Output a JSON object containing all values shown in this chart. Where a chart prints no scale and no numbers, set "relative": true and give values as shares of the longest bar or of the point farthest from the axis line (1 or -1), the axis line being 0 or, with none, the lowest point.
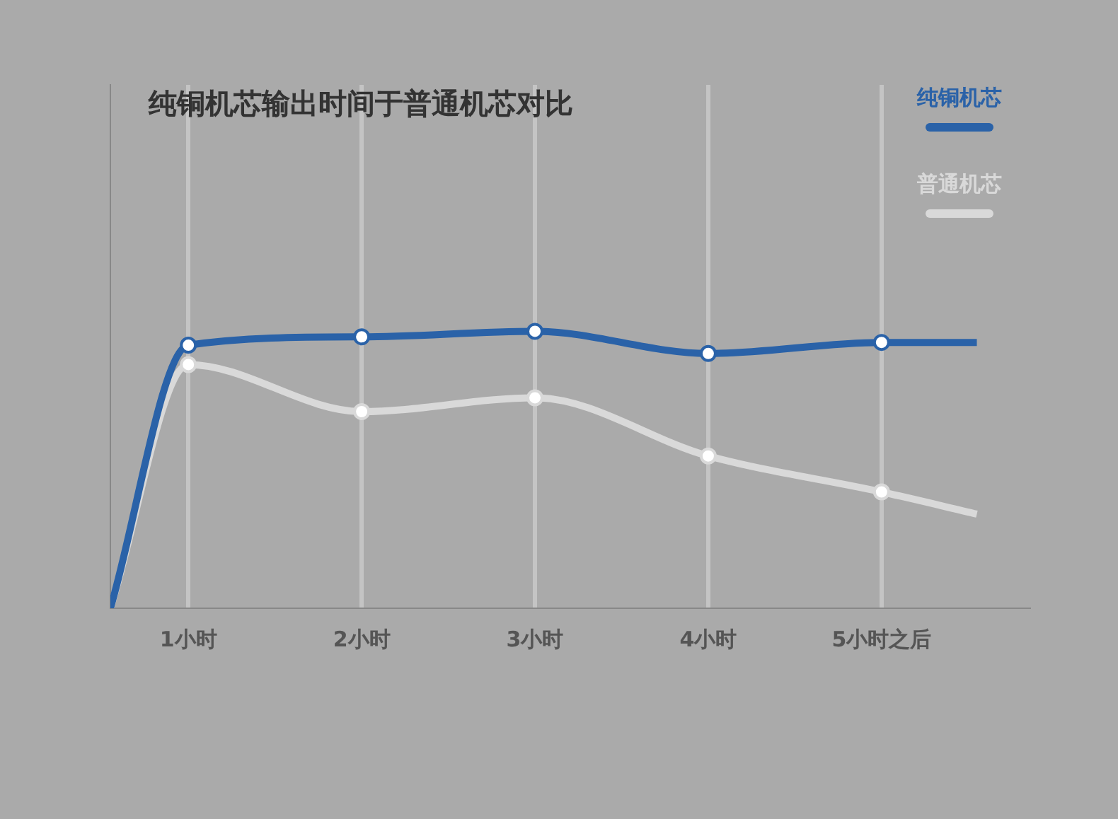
{
  "chart_data": {
    "type": "line",
    "title": "纯铜机芯输出时间于普通机芯对比",
    "relative": true,
    "xlim": [
      0.55,
      5.85
    ],
    "xticks": [
      {
        "value": 1,
        "label": "1小时"
      },
      {
        "value": 2,
        "label": "2小时"
      },
      {
        "value": 3,
        "label": "3小时"
      },
      {
        "value": 4,
        "label": "4小时"
      },
      {
        "value": 5,
        "label": "5小时之后"
      }
    ],
    "series": [
      {
        "name": "纯铜机芯",
        "color": "#2a62a8",
        "x": [
          0.55,
          1,
          2,
          3,
          4,
          5,
          5.55
        ],
        "values": [
          0,
          0.95,
          0.98,
          1,
          0.92,
          0.96,
          0.96
        ]
      },
      {
        "name": "普通机芯",
        "color": "#d9d9d9",
        "x": [
          0.55,
          1,
          2,
          3,
          4,
          5,
          5.55
        ],
        "values": [
          0,
          0.88,
          0.71,
          0.76,
          0.55,
          0.42,
          0.34
        ]
      }
    ],
    "grid": "x",
    "legend": "top right",
    "marker": "circle",
    "line_style": "solid"
  }
}
